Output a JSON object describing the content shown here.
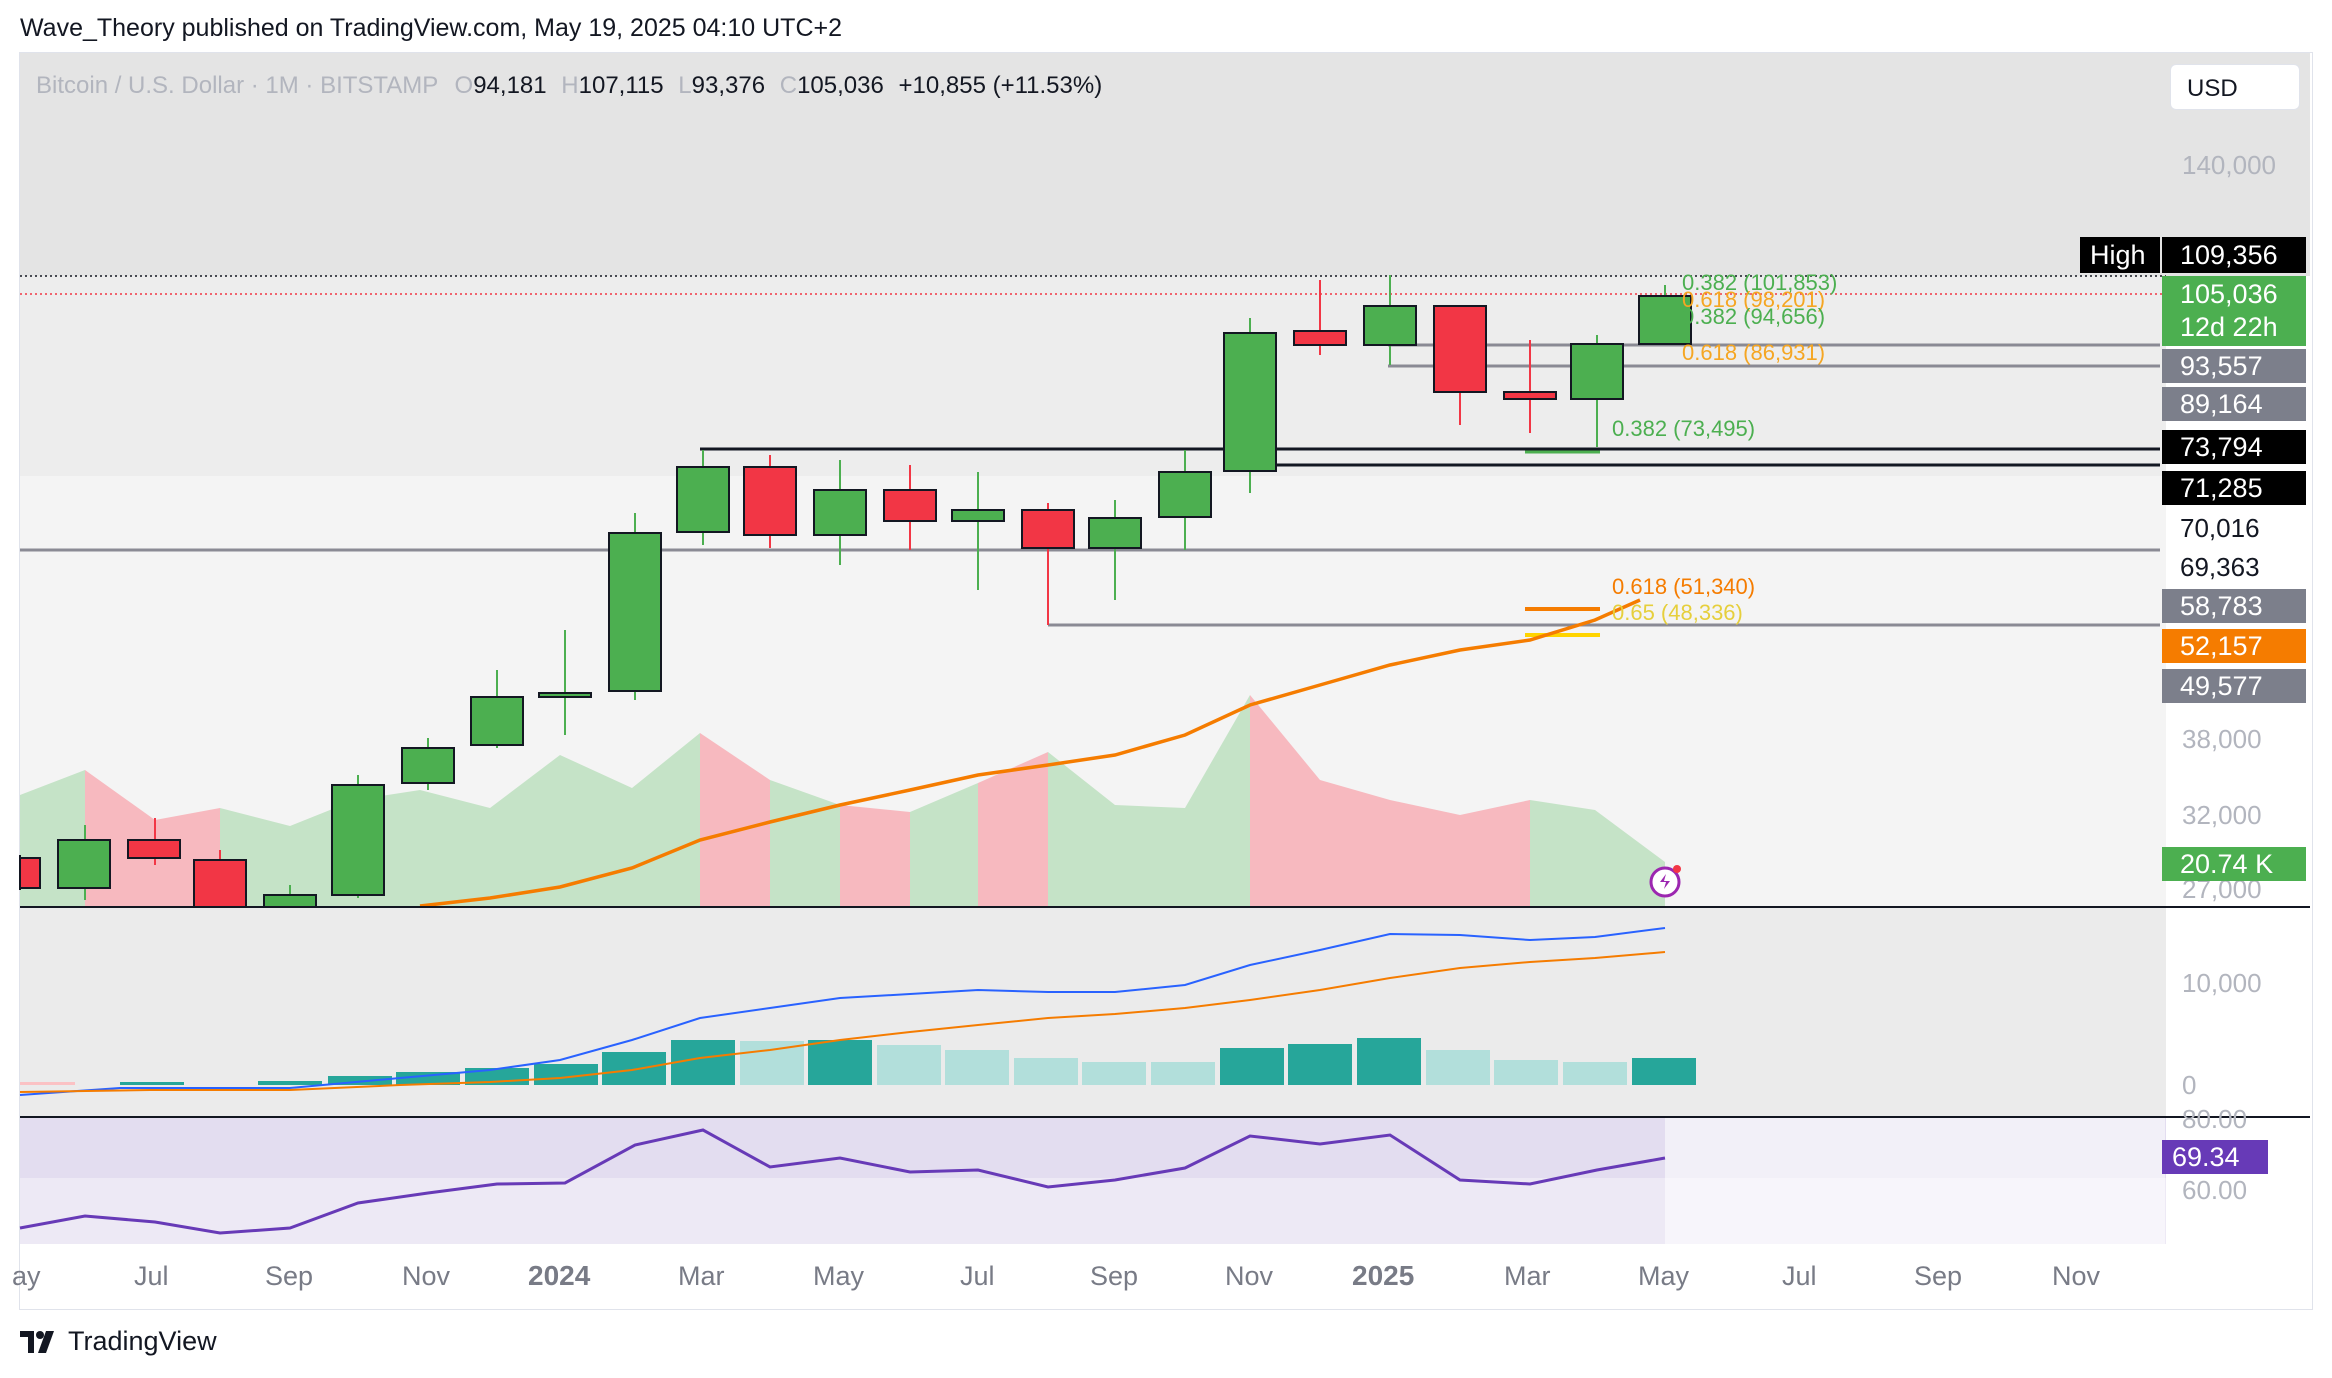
{
  "header": {
    "published_by": "Wave_Theory published on TradingView.com, May 19, 2025 04:10 UTC+2"
  },
  "symbol": {
    "name": "Bitcoin / U.S. Dollar · 1M · BITSTAMP",
    "o_label": "O",
    "o_value": "94,181",
    "h_label": "H",
    "h_value": "107,115",
    "l_label": "L",
    "l_value": "93,376",
    "c_label": "C",
    "c_value": "105,036",
    "change": "+10,855 (+11.53%)"
  },
  "currency": "USD",
  "price_axis": {
    "labels": [
      "140,000",
      "38,000",
      "32,000",
      "27,000"
    ],
    "macd_labels": [
      "10,000",
      "0"
    ],
    "rsi_labels": [
      "80.00",
      "60.00"
    ]
  },
  "price_tags": {
    "high_label": "High",
    "high_value": "109,356",
    "last_price": "105,036",
    "countdown": "12d 22h",
    "levels": [
      "93,557",
      "89,164",
      "73,794",
      "71,285",
      "70,016",
      "69,363",
      "58,783",
      "52,157",
      "49,577"
    ],
    "volume": "20.74 K",
    "rsi": "69.34"
  },
  "fib_labels": {
    "f1": "0.382 (101,853)",
    "f2": "0.618 (98,201)",
    "f3": "0.382 (94,656)",
    "f4": "0.618 (86,931)",
    "f5": "0.382 (73,495)",
    "f6": "0.618 (51,340)",
    "f7": "0.65 (48,336)"
  },
  "time_axis": [
    "ay",
    "Jul",
    "Sep",
    "Nov",
    "2024",
    "Mar",
    "May",
    "Jul",
    "Sep",
    "Nov",
    "2025",
    "Mar",
    "May",
    "Jul",
    "Sep",
    "Nov"
  ],
  "footer": {
    "brand": "TradingView"
  },
  "colors": {
    "up": "#4caf50",
    "down": "#f23645",
    "ema": "#f57c00",
    "macd": "#2962ff",
    "rsi": "#673ab7"
  }
}
